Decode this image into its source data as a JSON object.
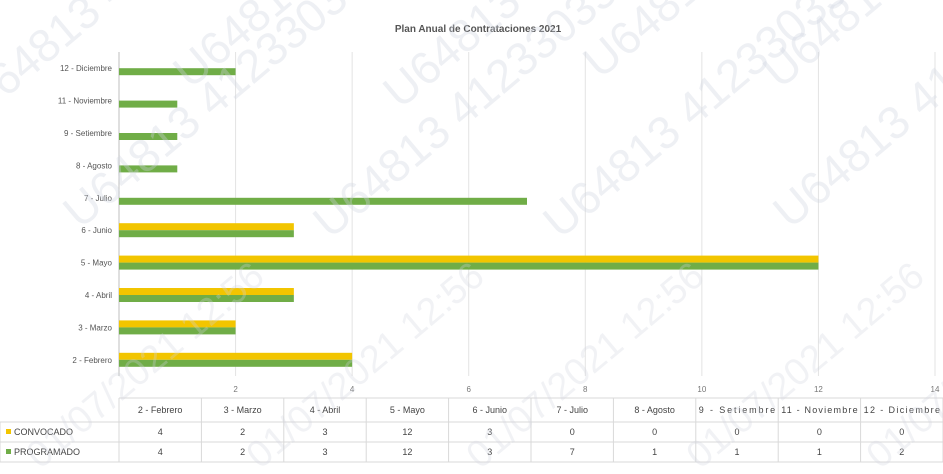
{
  "chart_data": {
    "type": "bar",
    "orientation": "horizontal",
    "title": "Plan Anual de Contrataciones 2021",
    "categories": [
      "2 - Febrero",
      "3 - Marzo",
      "4 - Abril",
      "5 - Mayo",
      "6 - Junio",
      "7 - Julio",
      "8 - Agosto",
      "9 - Setiembre",
      "11 - Noviembre",
      "12 - Diciembre"
    ],
    "table_headers": [
      "2 - Febrero",
      "3 - Marzo",
      "4 - Abril",
      "5 - Mayo",
      "6 - Junio",
      "7 - Julio",
      "8 - Agosto",
      "9 - Setiembre",
      "11 - Noviembre",
      "12 - Diciembre"
    ],
    "series": [
      {
        "name": "CONVOCADO",
        "color": "#f2c500",
        "values": [
          4,
          2,
          3,
          12,
          3,
          0,
          0,
          0,
          0,
          0
        ]
      },
      {
        "name": "PROGRAMADO",
        "color": "#70ad47",
        "values": [
          4,
          2,
          3,
          12,
          3,
          7,
          1,
          1,
          1,
          2
        ]
      }
    ],
    "xlim": [
      0,
      14
    ],
    "ticks": [
      0,
      2,
      4,
      6,
      8,
      10,
      12,
      14
    ],
    "tick_labels": [
      "",
      "2",
      "4",
      "6",
      "8",
      "10",
      "12",
      "14"
    ],
    "grid": true,
    "legend": "data-table-left"
  },
  "watermark": {
    "id_text": "U64813 41233035",
    "date_text": "01/07/2021 12:56"
  }
}
